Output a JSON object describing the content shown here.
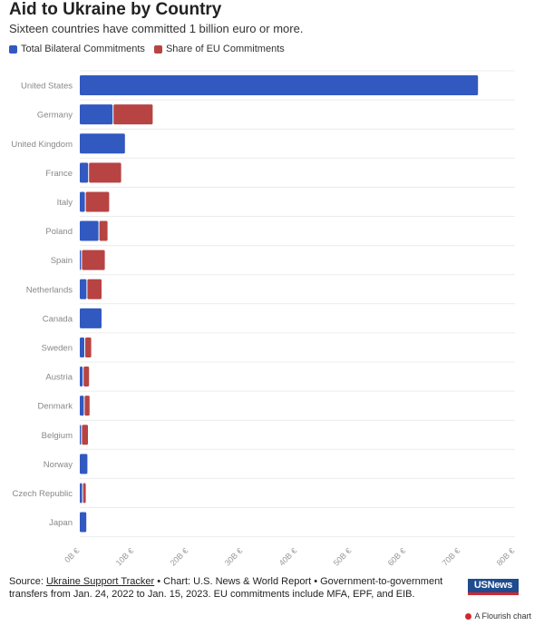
{
  "header": {
    "title": "Aid to Ukraine by Country",
    "subtitle": "Sixteen countries have committed 1 billion euro or more."
  },
  "legend": {
    "items": [
      {
        "label": "Total Bilateral Commitments",
        "color": "#3159c0"
      },
      {
        "label": "Share of EU Commitments",
        "color": "#b74443"
      }
    ]
  },
  "chart_data": {
    "type": "bar",
    "orientation": "horizontal",
    "stacked": true,
    "categories": [
      "United States",
      "Germany",
      "United Kingdom",
      "France",
      "Italy",
      "Poland",
      "Spain",
      "Netherlands",
      "Canada",
      "Sweden",
      "Austria",
      "Denmark",
      "Belgium",
      "Norway",
      "Czech Republic",
      "Japan"
    ],
    "series": [
      {
        "name": "Total Bilateral Commitments",
        "color": "#3159c0",
        "values": [
          73.2,
          6.2,
          8.3,
          1.7,
          1.1,
          3.6,
          0.4,
          1.4,
          4.0,
          1.0,
          0.7,
          0.9,
          0.4,
          1.4,
          0.6,
          1.2
        ]
      },
      {
        "name": "Share of EU Commitments",
        "color": "#b74443",
        "values": [
          0,
          7.2,
          0,
          5.9,
          4.3,
          1.5,
          4.2,
          2.6,
          0,
          1.1,
          1.0,
          0.9,
          1.1,
          0,
          0.5,
          0
        ]
      }
    ],
    "xlim": [
      0,
      80
    ],
    "xticks": [
      0,
      10,
      20,
      30,
      40,
      50,
      60,
      70,
      80
    ],
    "xtick_labels": [
      "0B €",
      "10B €",
      "20B €",
      "30B €",
      "40B €",
      "50B €",
      "60B €",
      "70B €",
      "80B €"
    ],
    "grid": true,
    "legend_position": "top-left",
    "xlabel": "",
    "ylabel": ""
  },
  "footer": {
    "source_prefix": "Source: ",
    "source_link": "Ukraine Support Tracker",
    "source_rest": " • Chart: U.S. News & World Report • Government-to-government transfers from Jan. 24, 2022 to Jan. 15, 2023. EU commitments include MFA, EPF, and EIB.",
    "logo_text": "USNews",
    "flourish_text": "A Flourish chart"
  }
}
